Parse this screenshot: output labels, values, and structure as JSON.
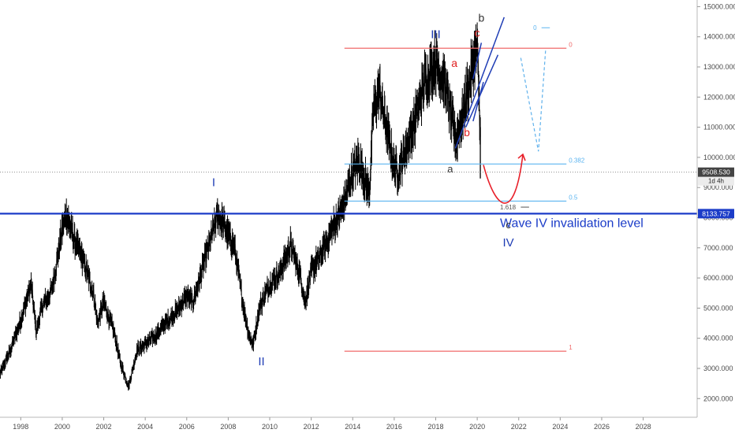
{
  "chart_data": {
    "type": "line",
    "x_ticks": [
      "1998",
      "2000",
      "2002",
      "2004",
      "2006",
      "2008",
      "2010",
      "2012",
      "2014",
      "2016",
      "2018",
      "2020",
      "2022",
      "2024",
      "2026",
      "2028"
    ],
    "y_ticks": [
      "2000.000",
      "3000.000",
      "4000.000",
      "5000.000",
      "6000.000",
      "7000.000",
      "8000.000",
      "9000.000",
      "10000.000",
      "11000.000",
      "12000.000",
      "13000.000",
      "14000.000",
      "15000.000"
    ],
    "xlim": [
      1997.0,
      2030.6
    ],
    "ylim": [
      1380,
      15220
    ],
    "series": [
      {
        "x": [
          1997.0,
          1997.5,
          1998.0,
          1998.5,
          1998.75,
          1999.0,
          1999.5,
          2000.0,
          2000.2,
          2000.6,
          2001.0,
          2001.5,
          2001.7,
          2002.0,
          2002.5,
          2002.8,
          2003.2,
          2003.6,
          2004.0,
          2004.5,
          2005.0,
          2005.5,
          2006.0,
          2006.3,
          2006.6,
          2007.0,
          2007.5,
          2007.9,
          2008.3,
          2008.7,
          2009.0,
          2009.2,
          2009.5,
          2010.0,
          2010.5,
          2011.0,
          2011.5,
          2011.7,
          2012.0,
          2012.5,
          2013.0,
          2013.5,
          2014.0,
          2014.3,
          2014.6,
          2014.8,
          2015.0,
          2015.3,
          2015.6,
          2016.0,
          2016.2,
          2016.6,
          2017.0,
          2017.5,
          2018.0,
          2018.2,
          2018.5,
          2018.8,
          2019.0,
          2019.3,
          2019.6,
          2020.0,
          2020.15
        ],
        "y": [
          2800,
          3600,
          4600,
          5800,
          4200,
          5000,
          5600,
          7600,
          8100,
          7200,
          6600,
          5500,
          4500,
          5200,
          4200,
          3200,
          2400,
          3600,
          3800,
          4100,
          4500,
          4900,
          5400,
          5200,
          5900,
          6900,
          8100,
          7600,
          7000,
          5200,
          4100,
          3800,
          5000,
          5800,
          6200,
          7100,
          6000,
          5200,
          6200,
          6800,
          7600,
          8300,
          9500,
          9900,
          9200,
          8800,
          11600,
          12200,
          11000,
          9700,
          9500,
          10400,
          11200,
          12600,
          13200,
          12800,
          12300,
          11100,
          10600,
          11400,
          12400,
          13600,
          11000
        ]
      }
    ],
    "horizontal_levels": [
      {
        "label": "0",
        "value": 13620
      },
      {
        "label": "0.382",
        "value": 9780
      },
      {
        "label": "0.5",
        "value": 8550
      },
      {
        "label": "1",
        "value": 3570
      }
    ],
    "current_price": {
      "value": "9508.530",
      "tag": "1d 4h"
    },
    "invalidation_level": {
      "value": "8133.757",
      "text": "Wave IV invalidation level"
    },
    "fib_extension_label": "1.618",
    "fib_extension_zero_label": "0",
    "wave_labels": {
      "I": "I",
      "II": "II",
      "III": "III",
      "IV": "IV",
      "big_a": "a",
      "big_b": "b",
      "big_c": "c",
      "small_a": "a",
      "small_b": "b",
      "small_c": "c"
    },
    "colors": {
      "price": "#000000",
      "fib_red": "#f06a6a",
      "fib_blue": "#5bb4f0",
      "wave_blue": "#1f3db5",
      "wave_red": "#e02020",
      "invalidation": "#1b3cc8",
      "projection_dashed": "#5fb1ec",
      "red_arrow": "#e8202a"
    }
  }
}
